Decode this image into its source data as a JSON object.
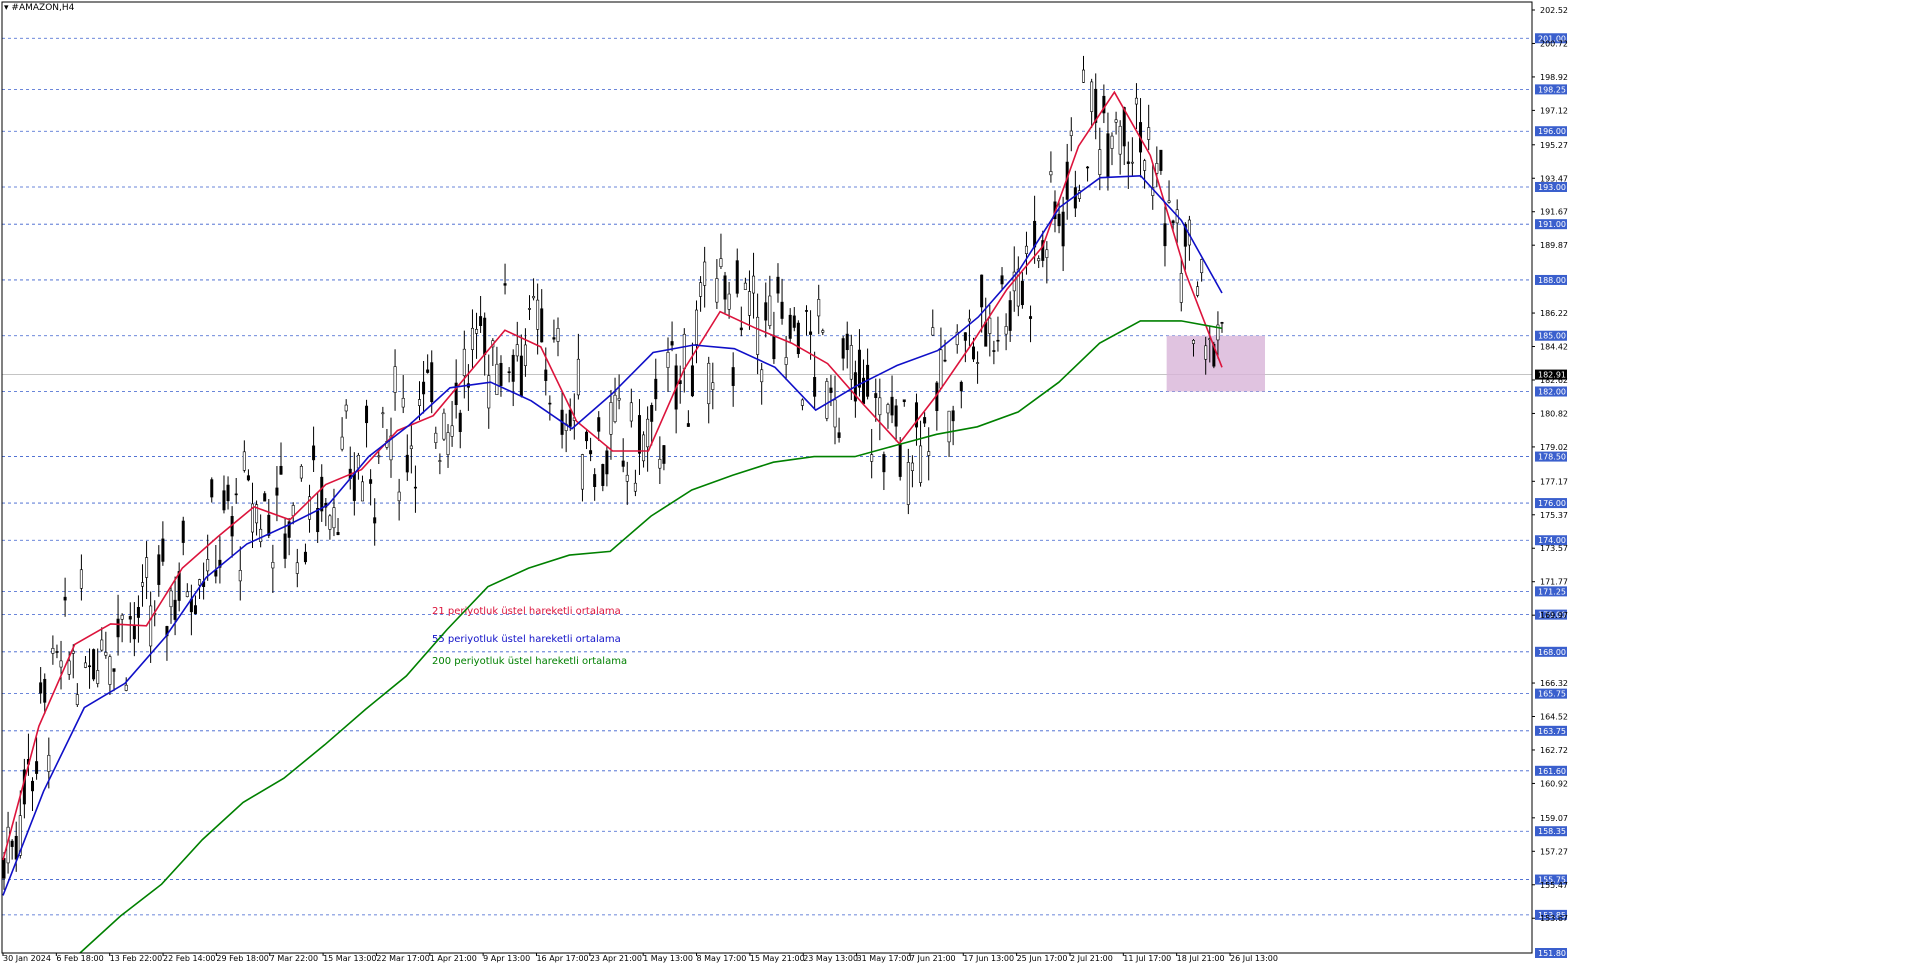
{
  "symbol": "#AMAZON,H4",
  "colors": {
    "candle": "#000000",
    "ema21": "#dc143c",
    "ema55": "#1010c8",
    "ema200": "#008000",
    "level_line": "#3a5fcd",
    "level_badge": "#3a5fcd",
    "current_badge": "#000000",
    "zone": "#d8b4d8"
  },
  "legend": [
    {
      "text": "21 periyotluk üstel hareketli ortalama",
      "color": "#dc143c"
    },
    {
      "text": "55 periyotluk üstel hareketli ortalama",
      "color": "#1010c8"
    },
    {
      "text": "200 periyotluk üstel hareketli ortalama",
      "color": "#008000"
    }
  ],
  "chart_data": {
    "type": "line",
    "ylim": [
      151.8,
      202.95
    ],
    "y_ticks": [
      "202.52",
      "200.72",
      "198.92",
      "197.12",
      "195.27",
      "193.47",
      "191.67",
      "189.87",
      "186.22",
      "184.42",
      "182.62",
      "180.82",
      "179.02",
      "177.17",
      "175.37",
      "173.57",
      "171.77",
      "169.97",
      "166.32",
      "164.52",
      "162.72",
      "160.92",
      "159.07",
      "157.27",
      "155.47",
      "153.67"
    ],
    "level_lines": [
      "201.00",
      "198.25",
      "196.00",
      "193.00",
      "191.00",
      "188.00",
      "185.00",
      "182.00",
      "178.50",
      "176.00",
      "174.00",
      "171.25",
      "170.00",
      "168.00",
      "165.75",
      "163.75",
      "161.60",
      "158.35",
      "155.75",
      "153.85",
      "151.80"
    ],
    "current_price": "182.91",
    "x_labels": [
      "30 Jan 2024",
      "6 Feb 18:00",
      "13 Feb 22:00",
      "22 Feb 14:00",
      "29 Feb 18:00",
      "7 Mar 22:00",
      "15 Mar 13:00",
      "22 Mar 17:00",
      "1 Apr 21:00",
      "9 Apr 13:00",
      "16 Apr 17:00",
      "23 Apr 21:00",
      "1 May 13:00",
      "8 May 17:00",
      "15 May 21:00",
      "23 May 13:00",
      "31 May 17:00",
      "7 Jun 21:00",
      "17 Jun 13:00",
      "25 Jun 17:00",
      "2 Jul 21:00",
      "11 Jul 17:00",
      "18 Jul 21:00",
      "26 Jul 13:00"
    ],
    "zone": {
      "from_label": "18 Jul 21:00",
      "to_label": "26 Jul 13:00",
      "y_low": 182.0,
      "y_high": 185.0
    },
    "series": [
      {
        "name": "21 periyotluk üstel hareketli ortalama",
        "values": [
          156.8,
          164.0,
          168.4,
          169.5,
          169.4,
          172.5,
          174.2,
          175.8,
          175.1,
          177.0,
          177.8,
          179.9,
          180.7,
          183.0,
          185.3,
          184.4,
          180.4,
          178.8,
          178.8,
          183.2,
          186.3,
          185.4,
          184.6,
          183.5,
          181.3,
          179.2,
          181.7,
          184.5,
          187.5,
          189.8,
          195.2,
          198.1,
          194.7,
          188.3,
          183.3
        ]
      },
      {
        "name": "55 periyotluk üstel hareketli ortalama",
        "values": [
          154.9,
          160.5,
          165.0,
          166.3,
          168.8,
          172.0,
          173.8,
          174.8,
          175.9,
          178.5,
          180.2,
          182.2,
          182.5,
          181.5,
          180.0,
          181.9,
          184.1,
          184.5,
          184.3,
          183.3,
          181.0,
          182.3,
          183.4,
          184.2,
          186.0,
          188.5,
          191.9,
          193.5,
          193.6,
          191.2,
          187.3
        ]
      },
      {
        "name": "200 periyotluk üstel hareketli ortalama",
        "values": [
          151.8,
          153.8,
          155.5,
          157.9,
          159.9,
          161.2,
          163.0,
          164.9,
          166.7,
          169.2,
          171.5,
          172.5,
          173.2,
          173.4,
          175.3,
          176.7,
          177.5,
          178.2,
          178.5,
          178.5,
          179.1,
          179.7,
          180.1,
          180.9,
          182.5,
          184.6,
          185.8,
          185.8,
          185.4
        ]
      }
    ]
  }
}
